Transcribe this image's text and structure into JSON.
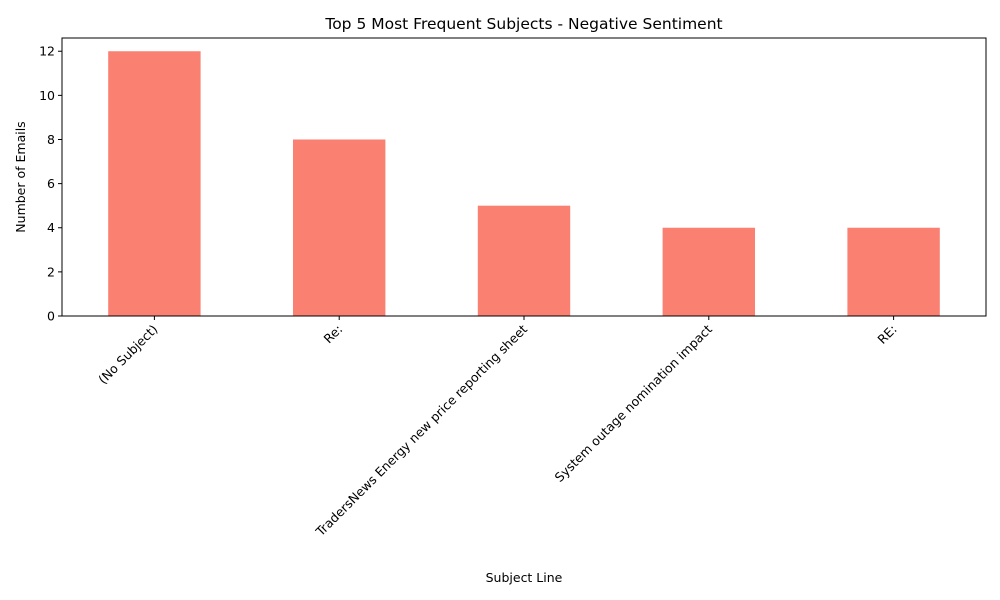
{
  "chart_data": {
    "type": "bar",
    "title": "Top 5 Most Frequent Subjects - Negative Sentiment",
    "xlabel": "Subject Line",
    "ylabel": "Number of Emails",
    "categories": [
      "(No Subject)",
      "Re:",
      "TradersNews Energy new price reporting sheet",
      "System outage nomination impact",
      "RE:"
    ],
    "values": [
      12,
      8,
      5,
      4,
      4
    ],
    "ylim": [
      0,
      12.6
    ],
    "yticks": [
      0,
      2,
      4,
      6,
      8,
      10,
      12
    ],
    "bar_color": "#fa8072",
    "grid": false,
    "legend": "none"
  }
}
